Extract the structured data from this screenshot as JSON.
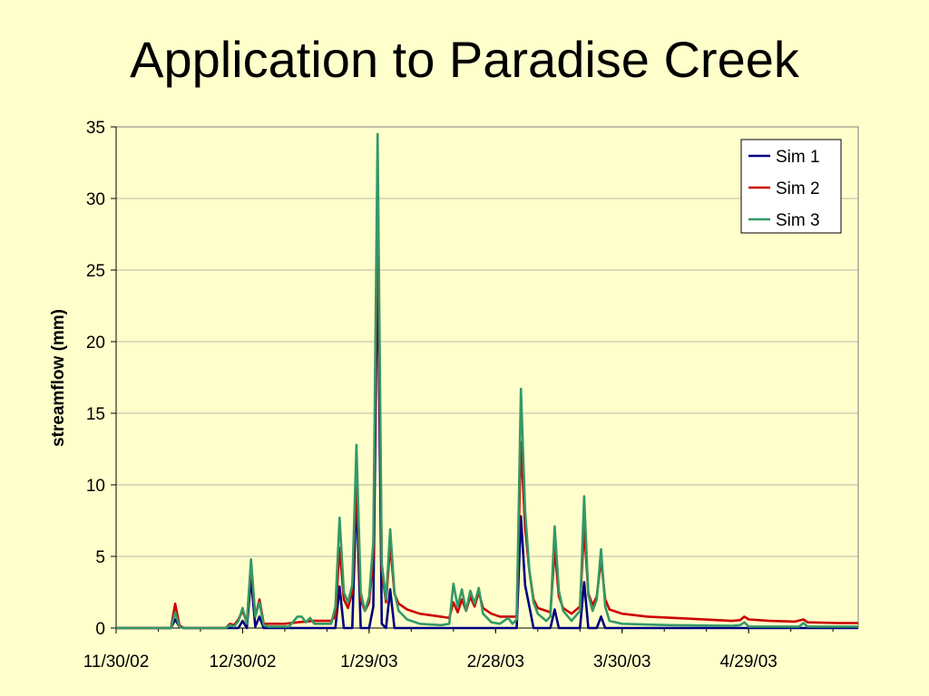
{
  "slide": {
    "title": "Application to Paradise Creek"
  },
  "chart_data": {
    "type": "line",
    "title": "Application to Paradise Creek",
    "xlabel": "",
    "ylabel": "streamflow (mm)",
    "ylim": [
      0,
      35
    ],
    "yticks": [
      0,
      5,
      10,
      15,
      20,
      25,
      30,
      35
    ],
    "xlim": [
      "2002-11-30",
      "2003-05-25"
    ],
    "xticks": [
      {
        "date": "2002-11-30",
        "label": "11/30/02"
      },
      {
        "date": "2002-12-30",
        "label": "12/30/02"
      },
      {
        "date": "2003-01-29",
        "label": "1/29/03"
      },
      {
        "date": "2003-02-28",
        "label": "2/28/03"
      },
      {
        "date": "2003-03-30",
        "label": "3/30/03"
      },
      {
        "date": "2003-04-29",
        "label": "4/29/03"
      }
    ],
    "grid": "horizontal",
    "legend": "top-right",
    "series": [
      {
        "name": "Sim 1",
        "color": "#000080",
        "points": [
          [
            "2002-11-30",
            0
          ],
          [
            "2002-12-13",
            0
          ],
          [
            "2002-12-14",
            0.6
          ],
          [
            "2002-12-15",
            0.1
          ],
          [
            "2002-12-16",
            0
          ],
          [
            "2002-12-29",
            0
          ],
          [
            "2002-12-30",
            0.5
          ],
          [
            "2002-12-31",
            0
          ],
          [
            "2003-01-01",
            3.5
          ],
          [
            "2003-01-02",
            0.1
          ],
          [
            "2003-01-03",
            0.8
          ],
          [
            "2003-01-04",
            0
          ],
          [
            "2003-01-21",
            0
          ],
          [
            "2003-01-22",
            2.9
          ],
          [
            "2003-01-23",
            0
          ],
          [
            "2003-01-25",
            0
          ],
          [
            "2003-01-26",
            9.5
          ],
          [
            "2003-01-27",
            0
          ],
          [
            "2003-01-29",
            0
          ],
          [
            "2003-01-30",
            1.5
          ],
          [
            "2003-01-31",
            27
          ],
          [
            "2003-02-01",
            0.3
          ],
          [
            "2003-02-02",
            0
          ],
          [
            "2003-02-03",
            2.7
          ],
          [
            "2003-02-04",
            0
          ],
          [
            "2003-03-05",
            0
          ],
          [
            "2003-03-06",
            7.8
          ],
          [
            "2003-03-07",
            3
          ],
          [
            "2003-03-08",
            1.5
          ],
          [
            "2003-03-09",
            0
          ],
          [
            "2003-03-13",
            0
          ],
          [
            "2003-03-14",
            1.3
          ],
          [
            "2003-03-15",
            0
          ],
          [
            "2003-03-20",
            0
          ],
          [
            "2003-03-21",
            3.2
          ],
          [
            "2003-03-22",
            0
          ],
          [
            "2003-03-24",
            0
          ],
          [
            "2003-03-25",
            0.8
          ],
          [
            "2003-03-26",
            0
          ],
          [
            "2003-05-25",
            0
          ]
        ]
      },
      {
        "name": "Sim 2",
        "color": "#CC0000",
        "points": [
          [
            "2002-11-30",
            0
          ],
          [
            "2002-12-13",
            0
          ],
          [
            "2002-12-14",
            1.7
          ],
          [
            "2002-12-15",
            0.2
          ],
          [
            "2002-12-16",
            0
          ],
          [
            "2002-12-26",
            0
          ],
          [
            "2002-12-27",
            0.3
          ],
          [
            "2002-12-28",
            0.2
          ],
          [
            "2002-12-29",
            0.6
          ],
          [
            "2002-12-30",
            1.2
          ],
          [
            "2002-12-31",
            0.4
          ],
          [
            "2003-01-01",
            4.5
          ],
          [
            "2003-01-02",
            0.8
          ],
          [
            "2003-01-03",
            2.0
          ],
          [
            "2003-01-04",
            0.3
          ],
          [
            "2003-01-05",
            0.3
          ],
          [
            "2003-01-09",
            0.3
          ],
          [
            "2003-01-12",
            0.4
          ],
          [
            "2003-01-16",
            0.5
          ],
          [
            "2003-01-20",
            0.5
          ],
          [
            "2003-01-21",
            0.8
          ],
          [
            "2003-01-22",
            5.6
          ],
          [
            "2003-01-23",
            2
          ],
          [
            "2003-01-24",
            1.4
          ],
          [
            "2003-01-25",
            2.5
          ],
          [
            "2003-01-26",
            10.5
          ],
          [
            "2003-01-27",
            2
          ],
          [
            "2003-01-28",
            1.2
          ],
          [
            "2003-01-29",
            1.8
          ],
          [
            "2003-01-30",
            5
          ],
          [
            "2003-01-31",
            30
          ],
          [
            "2003-02-01",
            4
          ],
          [
            "2003-02-02",
            1.8
          ],
          [
            "2003-02-03",
            5.8
          ],
          [
            "2003-02-04",
            2.4
          ],
          [
            "2003-02-05",
            1.7
          ],
          [
            "2003-02-07",
            1.3
          ],
          [
            "2003-02-10",
            1.0
          ],
          [
            "2003-02-15",
            0.8
          ],
          [
            "2003-02-17",
            0.7
          ],
          [
            "2003-02-18",
            1.8
          ],
          [
            "2003-02-19",
            1.1
          ],
          [
            "2003-02-20",
            2.0
          ],
          [
            "2003-02-21",
            1.2
          ],
          [
            "2003-02-22",
            2.2
          ],
          [
            "2003-02-23",
            1.5
          ],
          [
            "2003-02-24",
            2.5
          ],
          [
            "2003-02-25",
            1.4
          ],
          [
            "2003-02-27",
            1.0
          ],
          [
            "2003-03-01",
            0.8
          ],
          [
            "2003-03-05",
            0.8
          ],
          [
            "2003-03-06",
            13
          ],
          [
            "2003-03-07",
            7
          ],
          [
            "2003-03-08",
            4
          ],
          [
            "2003-03-09",
            2
          ],
          [
            "2003-03-10",
            1.4
          ],
          [
            "2003-03-13",
            1.1
          ],
          [
            "2003-03-14",
            5.5
          ],
          [
            "2003-03-15",
            2.2
          ],
          [
            "2003-03-16",
            1.4
          ],
          [
            "2003-03-18",
            1.0
          ],
          [
            "2003-03-20",
            1.5
          ],
          [
            "2003-03-21",
            7
          ],
          [
            "2003-03-22",
            2.4
          ],
          [
            "2003-03-23",
            1.6
          ],
          [
            "2003-03-24",
            2.2
          ],
          [
            "2003-03-25",
            4.8
          ],
          [
            "2003-03-26",
            2
          ],
          [
            "2003-03-27",
            1.3
          ],
          [
            "2003-03-30",
            1.0
          ],
          [
            "2003-04-05",
            0.8
          ],
          [
            "2003-04-15",
            0.65
          ],
          [
            "2003-04-25",
            0.5
          ],
          [
            "2003-04-27",
            0.55
          ],
          [
            "2003-04-28",
            0.8
          ],
          [
            "2003-04-29",
            0.6
          ],
          [
            "2003-05-04",
            0.5
          ],
          [
            "2003-05-10",
            0.45
          ],
          [
            "2003-05-12",
            0.6
          ],
          [
            "2003-05-13",
            0.4
          ],
          [
            "2003-05-20",
            0.35
          ],
          [
            "2003-05-25",
            0.35
          ]
        ]
      },
      {
        "name": "Sim 3",
        "color": "#339966",
        "points": [
          [
            "2002-11-30",
            0
          ],
          [
            "2002-12-13",
            0
          ],
          [
            "2002-12-14",
            1.1
          ],
          [
            "2002-12-15",
            0.1
          ],
          [
            "2002-12-16",
            0
          ],
          [
            "2002-12-26",
            0
          ],
          [
            "2002-12-27",
            0.2
          ],
          [
            "2002-12-28",
            0.1
          ],
          [
            "2002-12-29",
            0.5
          ],
          [
            "2002-12-30",
            1.4
          ],
          [
            "2002-12-31",
            0.3
          ],
          [
            "2003-01-01",
            4.8
          ],
          [
            "2003-01-02",
            0.8
          ],
          [
            "2003-01-03",
            1.8
          ],
          [
            "2003-01-04",
            0.2
          ],
          [
            "2003-01-05",
            0.1
          ],
          [
            "2003-01-10",
            0.1
          ],
          [
            "2003-01-12",
            0.8
          ],
          [
            "2003-01-13",
            0.8
          ],
          [
            "2003-01-14",
            0.4
          ],
          [
            "2003-01-15",
            0.7
          ],
          [
            "2003-01-16",
            0.3
          ],
          [
            "2003-01-20",
            0.3
          ],
          [
            "2003-01-21",
            1.5
          ],
          [
            "2003-01-22",
            7.7
          ],
          [
            "2003-01-23",
            2.5
          ],
          [
            "2003-01-24",
            1.8
          ],
          [
            "2003-01-25",
            3
          ],
          [
            "2003-01-26",
            12.8
          ],
          [
            "2003-01-27",
            2.5
          ],
          [
            "2003-01-28",
            1.2
          ],
          [
            "2003-01-29",
            2.2
          ],
          [
            "2003-01-30",
            6
          ],
          [
            "2003-01-31",
            34.5
          ],
          [
            "2003-02-01",
            4.5
          ],
          [
            "2003-02-02",
            2
          ],
          [
            "2003-02-03",
            6.9
          ],
          [
            "2003-02-04",
            2.5
          ],
          [
            "2003-02-05",
            1.2
          ],
          [
            "2003-02-07",
            0.6
          ],
          [
            "2003-02-10",
            0.3
          ],
          [
            "2003-02-15",
            0.2
          ],
          [
            "2003-02-17",
            0.3
          ],
          [
            "2003-02-18",
            3.1
          ],
          [
            "2003-02-19",
            1.5
          ],
          [
            "2003-02-20",
            2.7
          ],
          [
            "2003-02-21",
            1.2
          ],
          [
            "2003-02-22",
            2.6
          ],
          [
            "2003-02-23",
            1.7
          ],
          [
            "2003-02-24",
            2.8
          ],
          [
            "2003-02-25",
            1.0
          ],
          [
            "2003-02-27",
            0.4
          ],
          [
            "2003-03-01",
            0.3
          ],
          [
            "2003-03-02",
            0.5
          ],
          [
            "2003-03-03",
            0.7
          ],
          [
            "2003-03-04",
            0.3
          ],
          [
            "2003-03-05",
            0.6
          ],
          [
            "2003-03-06",
            16.7
          ],
          [
            "2003-03-07",
            8.2
          ],
          [
            "2003-03-08",
            4
          ],
          [
            "2003-03-09",
            1.8
          ],
          [
            "2003-03-10",
            1.0
          ],
          [
            "2003-03-12",
            0.5
          ],
          [
            "2003-03-13",
            0.8
          ],
          [
            "2003-03-14",
            7.1
          ],
          [
            "2003-03-15",
            2.6
          ],
          [
            "2003-03-16",
            1.2
          ],
          [
            "2003-03-18",
            0.5
          ],
          [
            "2003-03-20",
            1.2
          ],
          [
            "2003-03-21",
            9.2
          ],
          [
            "2003-03-22",
            2.3
          ],
          [
            "2003-03-23",
            1.2
          ],
          [
            "2003-03-24",
            2.0
          ],
          [
            "2003-03-25",
            5.5
          ],
          [
            "2003-03-26",
            1.5
          ],
          [
            "2003-03-27",
            0.5
          ],
          [
            "2003-03-30",
            0.3
          ],
          [
            "2003-04-10",
            0.2
          ],
          [
            "2003-04-25",
            0.15
          ],
          [
            "2003-04-27",
            0.2
          ],
          [
            "2003-04-28",
            0.4
          ],
          [
            "2003-04-29",
            0.1
          ],
          [
            "2003-05-11",
            0.1
          ],
          [
            "2003-05-12",
            0.35
          ],
          [
            "2003-05-13",
            0.1
          ],
          [
            "2003-05-25",
            0.1
          ]
        ]
      }
    ]
  }
}
